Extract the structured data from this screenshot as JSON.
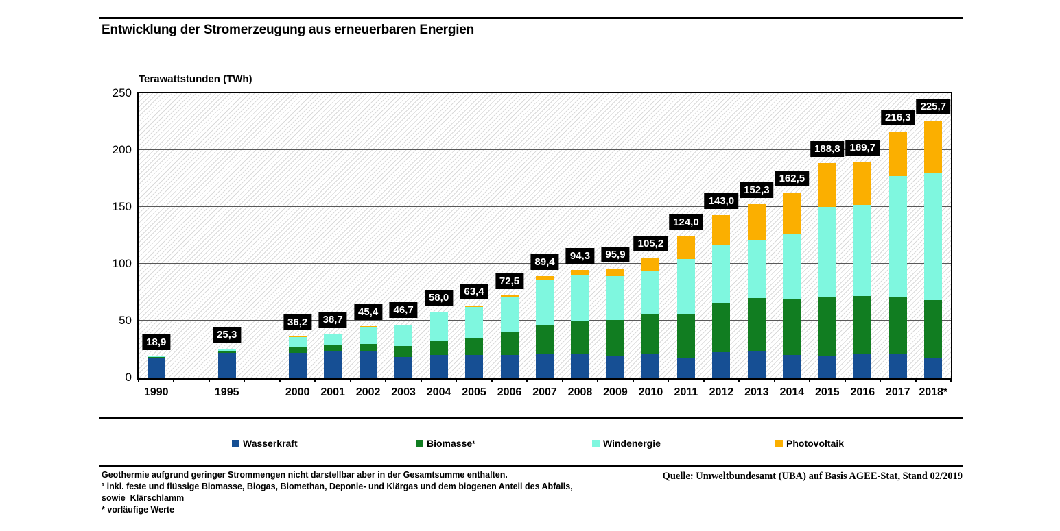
{
  "title": "Entwicklung der Stromerzeugung aus erneuerbaren Energien",
  "y_axis_title": "Terawattstunden (TWh)",
  "legend": {
    "items": [
      {
        "key": "wasserkraft",
        "label": "Wasserkraft",
        "color": "#164F94"
      },
      {
        "key": "biomasse",
        "label": "Biomasse¹",
        "color": "#117D21"
      },
      {
        "key": "windenergie",
        "label": "Windenergie",
        "color": "#7FF7DF"
      },
      {
        "key": "photovoltaik",
        "label": "Photovoltaik",
        "color": "#FBAF00"
      }
    ]
  },
  "chart_data": {
    "type": "bar",
    "stacked": true,
    "unit": "TWh",
    "title": "Entwicklung der Stromerzeugung aus erneuerbaren Energien",
    "ylabel": "Terawattstunden (TWh)",
    "ylim": [
      0,
      250
    ],
    "y_ticks": [
      0,
      50,
      100,
      150,
      200,
      250
    ],
    "grid": "horizontal",
    "legend_position": "bottom",
    "categories": [
      "1990",
      "1995",
      "2000",
      "2001",
      "2002",
      "2003",
      "2004",
      "2005",
      "2006",
      "2007",
      "2008",
      "2009",
      "2010",
      "2011",
      "2012",
      "2013",
      "2014",
      "2015",
      "2016",
      "2017",
      "2018*"
    ],
    "slot_index": [
      0,
      2,
      4,
      5,
      6,
      7,
      8,
      9,
      10,
      11,
      12,
      13,
      14,
      15,
      16,
      17,
      18,
      19,
      20,
      21,
      22
    ],
    "n_slots": 23,
    "series": [
      {
        "key": "wasserkraft",
        "name": "Wasserkraft",
        "color": "#164F94",
        "values": [
          17.0,
          21.6,
          21.7,
          22.7,
          23.1,
          17.9,
          20.1,
          19.6,
          20.0,
          21.2,
          20.4,
          19.0,
          21.0,
          17.7,
          22.1,
          23.0,
          19.6,
          19.0,
          20.5,
          20.2,
          16.6
        ]
      },
      {
        "key": "biomasse",
        "name": "Biomasse¹",
        "color": "#117D21",
        "values": [
          1.8,
          2.2,
          4.9,
          5.4,
          6.3,
          9.8,
          11.9,
          15.3,
          19.6,
          25.4,
          28.9,
          31.7,
          34.7,
          37.8,
          43.8,
          46.6,
          49.4,
          51.9,
          51.2,
          51.0,
          51.3
        ]
      },
      {
        "key": "windenergie",
        "name": "Windenergie",
        "color": "#7FF7DF",
        "values": [
          0.1,
          1.5,
          9.5,
          10.5,
          15.8,
          18.7,
          25.5,
          27.2,
          30.7,
          39.7,
          40.6,
          38.6,
          37.8,
          48.9,
          50.7,
          51.7,
          57.4,
          79.2,
          79.9,
          105.7,
          111.5
        ]
      },
      {
        "key": "photovoltaik",
        "name": "Photovoltaik",
        "color": "#FBAF00",
        "values": [
          0.0,
          0.0,
          0.1,
          0.1,
          0.2,
          0.3,
          0.5,
          1.3,
          2.2,
          3.1,
          4.4,
          6.6,
          11.7,
          19.6,
          26.4,
          31.0,
          36.1,
          38.7,
          38.1,
          39.4,
          46.3
        ]
      }
    ],
    "totals": [
      18.9,
      25.3,
      36.2,
      38.7,
      45.4,
      46.7,
      58.0,
      63.4,
      72.5,
      89.4,
      94.3,
      95.9,
      105.2,
      124.0,
      143.0,
      152.3,
      162.5,
      188.8,
      189.7,
      216.3,
      225.7
    ],
    "total_labels": [
      "18,9",
      "25,3",
      "36,2",
      "38,7",
      "45,4",
      "46,7",
      "58,0",
      "63,4",
      "72,5",
      "89,4",
      "94,3",
      "95,9",
      "105,2",
      "124,0",
      "143,0",
      "152,3",
      "162,5",
      "188,8",
      "189,7",
      "216,3",
      "225,7"
    ]
  },
  "footnotes": {
    "line1": "Geothermie aufgrund geringer Strommengen nicht darstellbar aber in der Gesamtsumme enthalten.",
    "line2": "¹ inkl. feste und flüssige Biomasse, Biogas, Biomethan, Deponie- und Klärgas und dem biogenen Anteil des Abfalls,",
    "line3": "sowie  Klärschlamm",
    "line4": "* vorläufige Werte"
  },
  "source": "Quelle: Umweltbundesamt (UBA) auf Basis AGEE-Stat, Stand 02/2019"
}
